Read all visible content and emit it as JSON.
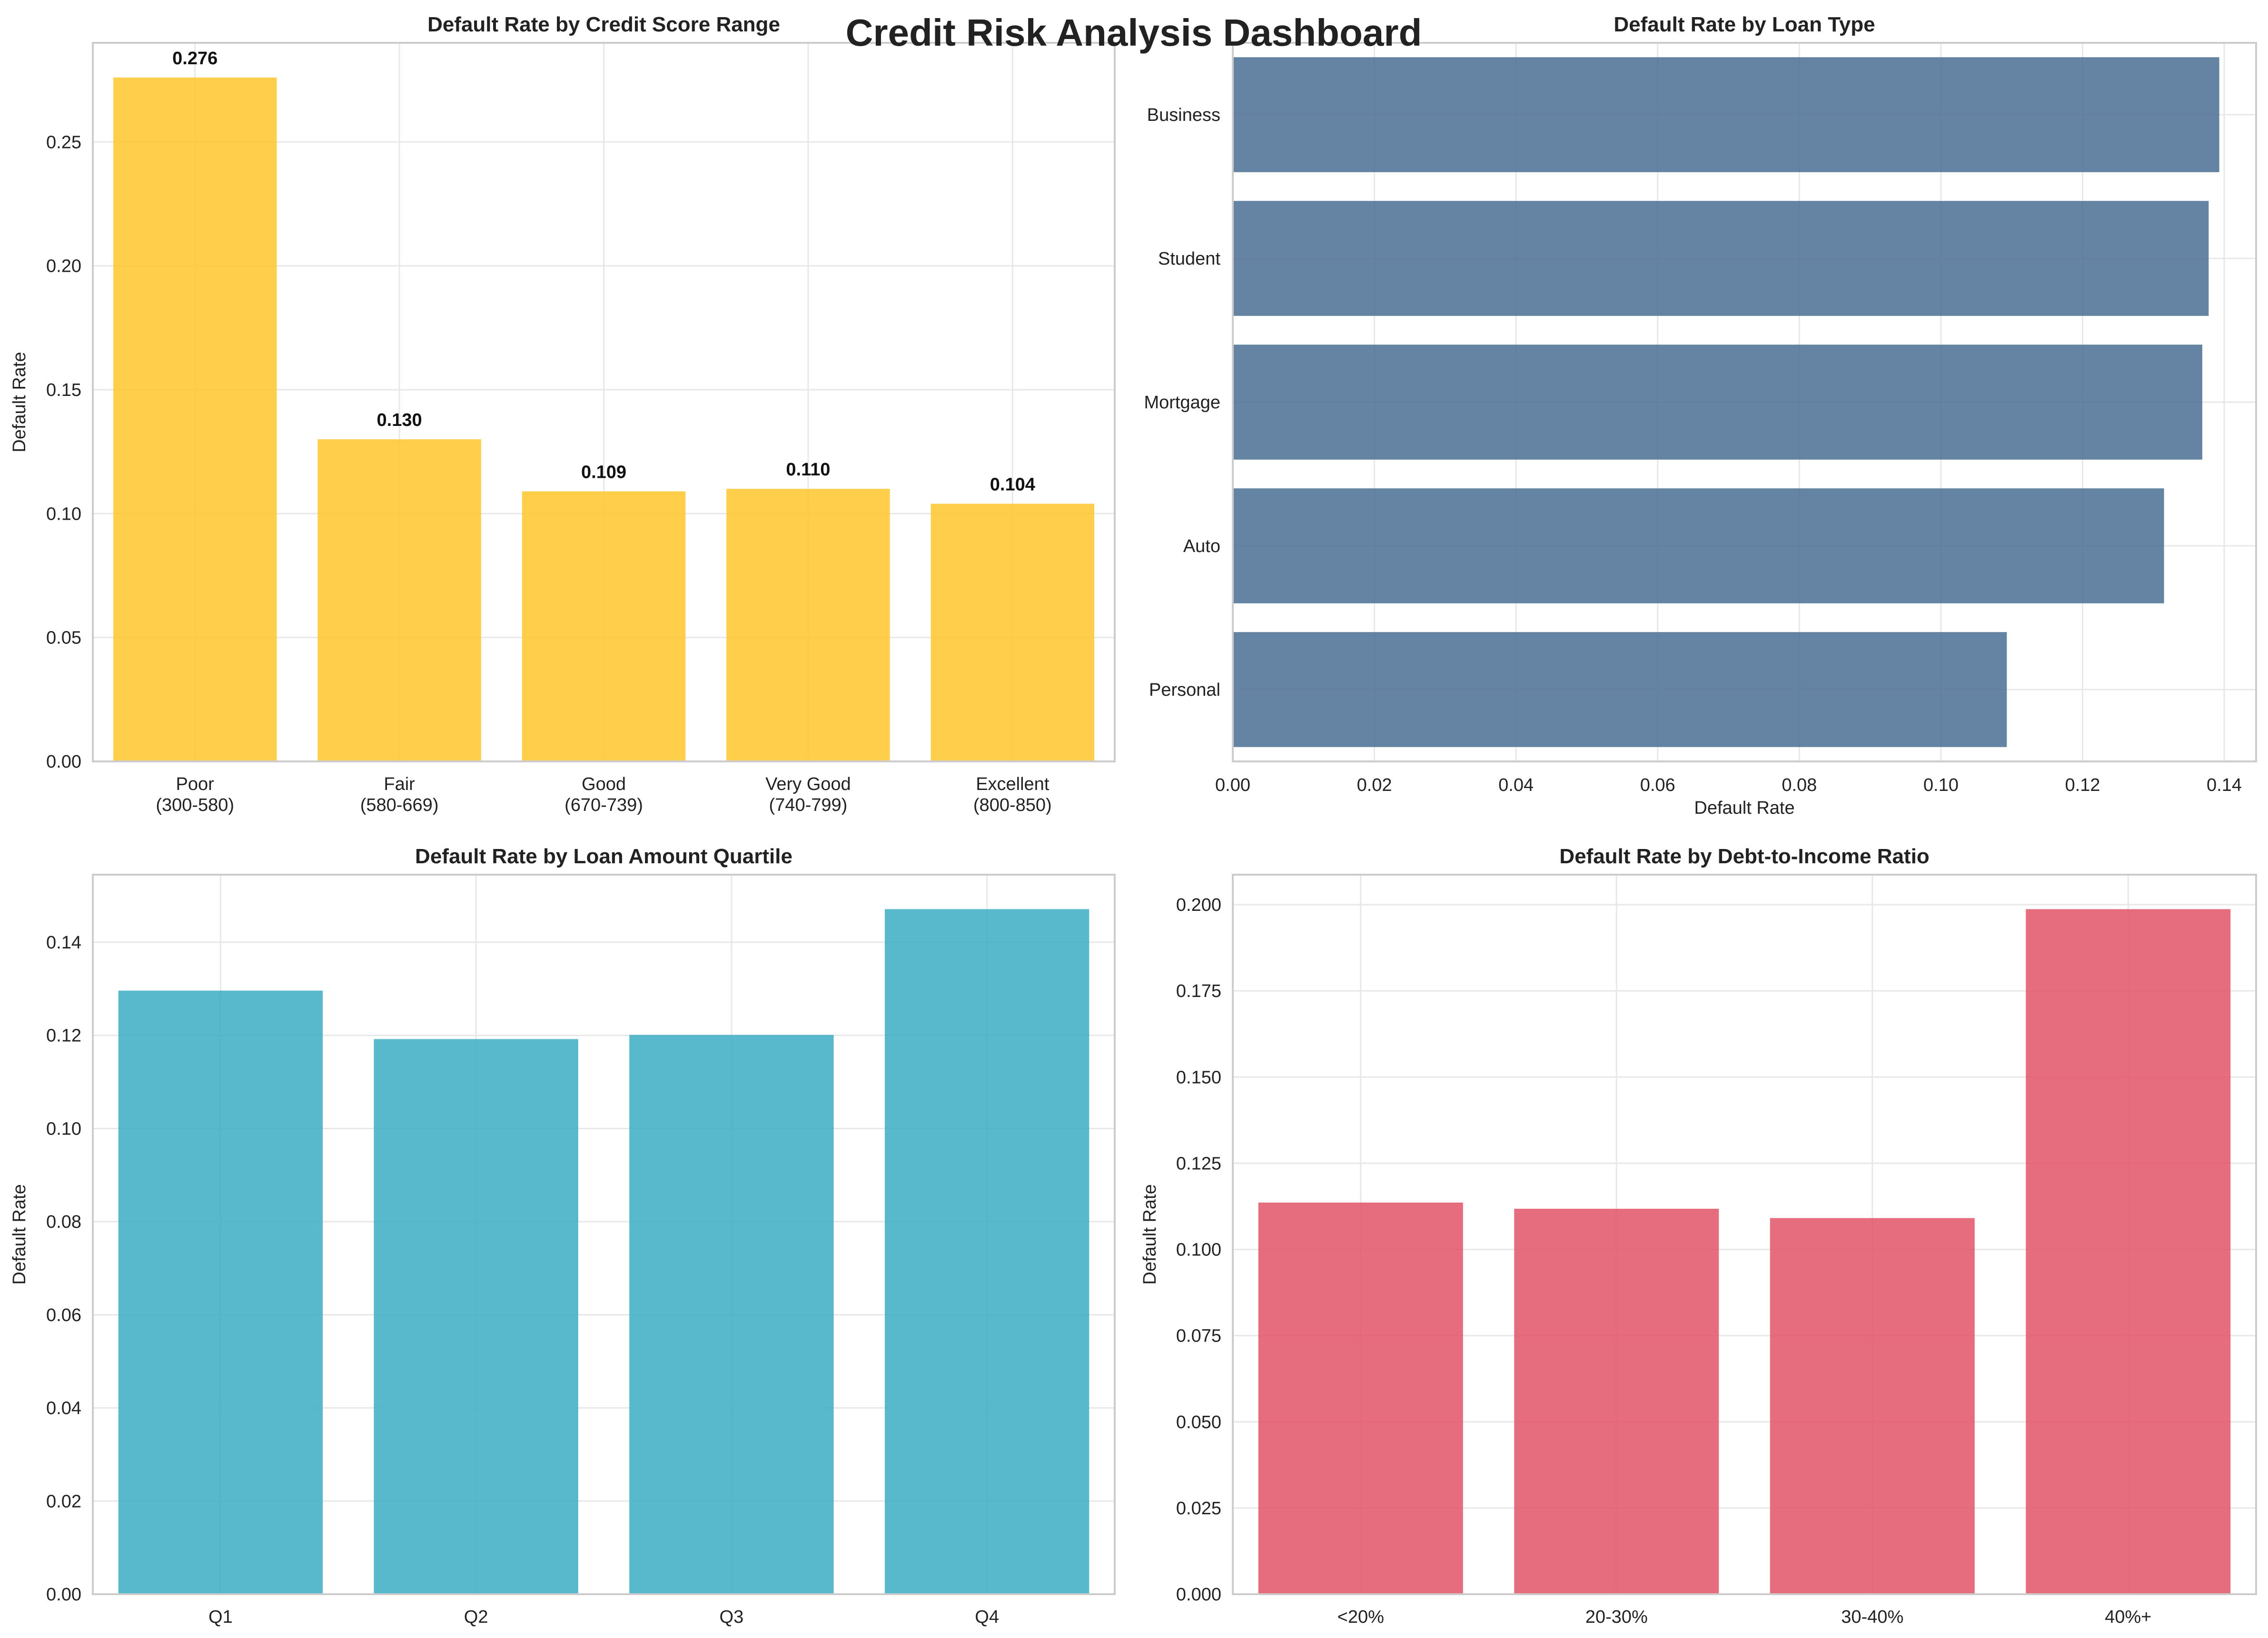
{
  "dashboard": {
    "title": "Credit Risk Analysis Dashboard"
  },
  "chart_data": [
    {
      "type": "bar",
      "orientation": "vertical",
      "title": "Default Rate by Credit Score Range",
      "xlabel": "",
      "ylabel": "Default Rate",
      "categories": [
        "Poor\n(300-580)",
        "Fair\n(580-669)",
        "Good\n(670-739)",
        "Very Good\n(740-799)",
        "Excellent\n(800-850)"
      ],
      "values": [
        0.276,
        0.13,
        0.109,
        0.11,
        0.104
      ],
      "data_labels": [
        "0.276",
        "0.130",
        "0.109",
        "0.110",
        "0.104"
      ],
      "ylim": [
        0,
        0.29
      ],
      "ticks": [
        0,
        0.05,
        0.1,
        0.15,
        0.2,
        0.25
      ],
      "tick_labels": [
        "0.00",
        "0.05",
        "0.10",
        "0.15",
        "0.20",
        "0.25"
      ],
      "color": "#FFC72C",
      "grid": true
    },
    {
      "type": "bar",
      "orientation": "horizontal",
      "title": "Default Rate by Loan Type",
      "xlabel": "Default Rate",
      "ylabel": "",
      "categories": [
        "Personal",
        "Auto",
        "Mortgage",
        "Student",
        "Business"
      ],
      "values": [
        0.1093,
        0.1315,
        0.1369,
        0.1378,
        0.1393
      ],
      "xlim": [
        0,
        0.1445
      ],
      "ticks": [
        0,
        0.02,
        0.04,
        0.06,
        0.08,
        0.1,
        0.12,
        0.14
      ],
      "tick_labels": [
        "0.00",
        "0.02",
        "0.04",
        "0.06",
        "0.08",
        "0.10",
        "0.12",
        "0.14"
      ],
      "color": "#4A6D92",
      "grid": true
    },
    {
      "type": "bar",
      "orientation": "vertical",
      "title": "Default Rate by Loan Amount Quartile",
      "xlabel": "",
      "ylabel": "Default Rate",
      "categories": [
        "Q1",
        "Q2",
        "Q3",
        "Q4"
      ],
      "values": [
        0.1296,
        0.1192,
        0.1201,
        0.1471
      ],
      "ylim": [
        0,
        0.1545
      ],
      "ticks": [
        0,
        0.02,
        0.04,
        0.06,
        0.08,
        0.1,
        0.12,
        0.14
      ],
      "tick_labels": [
        "0.00",
        "0.02",
        "0.04",
        "0.06",
        "0.08",
        "0.10",
        "0.12",
        "0.14"
      ],
      "color": "#3AADC2",
      "grid": true
    },
    {
      "type": "bar",
      "orientation": "vertical",
      "title": "Default Rate by Debt-to-Income Ratio",
      "xlabel": "",
      "ylabel": "Default Rate",
      "categories": [
        "<20%",
        "20-30%",
        "30-40%",
        "40%+"
      ],
      "values": [
        0.1136,
        0.1118,
        0.1091,
        0.1987
      ],
      "ylim": [
        0,
        0.2087
      ],
      "ticks": [
        0,
        0.025,
        0.05,
        0.075,
        0.1,
        0.125,
        0.15,
        0.175,
        0.2
      ],
      "tick_labels": [
        "0.000",
        "0.025",
        "0.050",
        "0.075",
        "0.100",
        "0.125",
        "0.150",
        "0.175",
        "0.200"
      ],
      "color": "#E25366",
      "grid": true
    }
  ]
}
